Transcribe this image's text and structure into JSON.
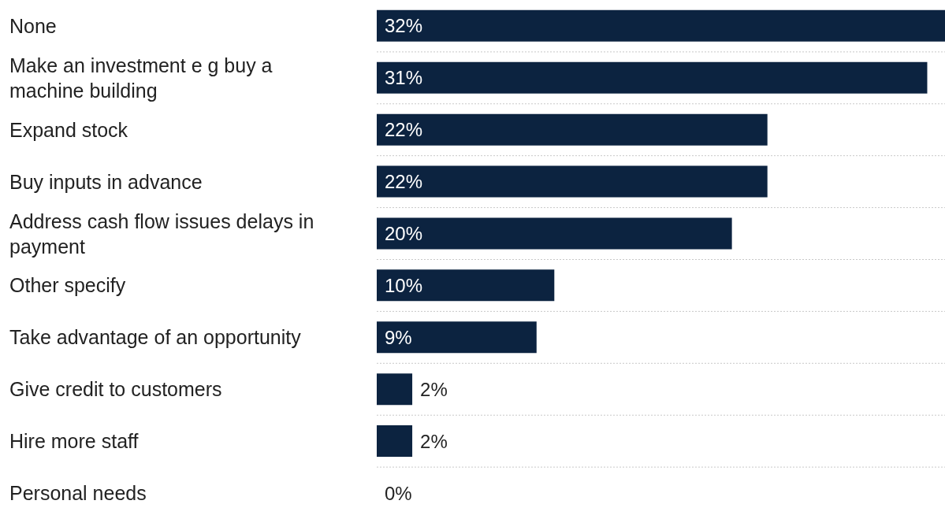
{
  "chart_data": {
    "type": "bar",
    "orientation": "horizontal",
    "categories": [
      "None",
      "Make an investment e g buy a machine building",
      "Expand stock",
      "Buy inputs in advance",
      "Address cash flow issues delays in payment",
      "Other specify",
      "Take advantage of an opportunity",
      "Give credit to customers",
      "Hire more staff",
      "Personal needs"
    ],
    "values": [
      32,
      31,
      22,
      22,
      20,
      10,
      9,
      2,
      2,
      0
    ],
    "value_labels": [
      "32%",
      "31%",
      "22%",
      "22%",
      "20%",
      "10%",
      "9%",
      "2%",
      "2%",
      "0%"
    ],
    "color": "#0c2340",
    "grid": "y"
  }
}
